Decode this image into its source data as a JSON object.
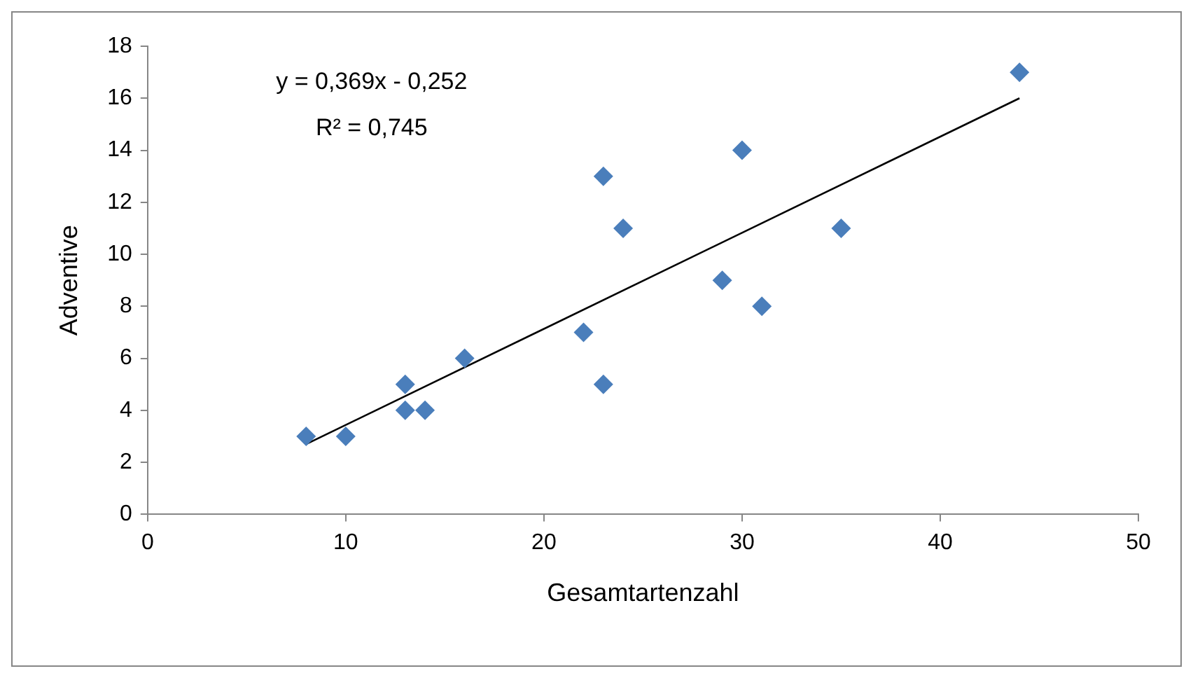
{
  "chart_data": {
    "type": "scatter",
    "xlabel": "Gesamtartenzahl",
    "ylabel": "Adventive",
    "xlim": [
      0,
      50
    ],
    "xticks": [
      0,
      10,
      20,
      30,
      40,
      50
    ],
    "ylim": [
      0,
      18
    ],
    "yticks": [
      0,
      2,
      4,
      6,
      8,
      10,
      12,
      14,
      16,
      18
    ],
    "grid": false,
    "legend": false,
    "marker": "diamond",
    "annotations": [
      "y = 0,369x - 0,252",
      "R² = 0,745"
    ],
    "series": [
      {
        "type": "scatter",
        "color": "#4a7ebb",
        "x": [
          8,
          10,
          13,
          13,
          14,
          16,
          22,
          23,
          23,
          24,
          29,
          30,
          31,
          35,
          44
        ],
        "values": [
          3,
          3,
          5,
          4,
          4,
          6,
          7,
          13,
          5,
          11,
          9,
          14,
          8,
          11,
          17
        ]
      },
      {
        "type": "line",
        "color": "#000000",
        "marker": "none",
        "line_style": "solid",
        "x": [
          8,
          44
        ],
        "values": [
          2.7,
          16.0
        ]
      }
    ]
  }
}
